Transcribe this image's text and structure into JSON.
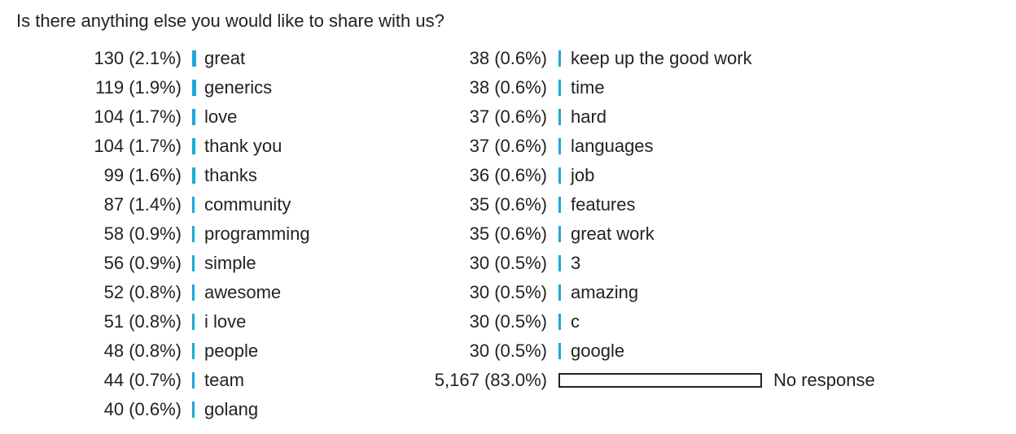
{
  "question": "Is there anything else you would like to share with us?",
  "chart_data": {
    "type": "bar",
    "title": "Is there anything else you would like to share with us?",
    "columns": [
      {
        "rows": [
          {
            "count": 130,
            "display": "130 (2.1%)",
            "percent": 2.1,
            "label": "great"
          },
          {
            "count": 119,
            "display": "119 (1.9%)",
            "percent": 1.9,
            "label": "generics"
          },
          {
            "count": 104,
            "display": "104 (1.7%)",
            "percent": 1.7,
            "label": "love"
          },
          {
            "count": 104,
            "display": "104 (1.7%)",
            "percent": 1.7,
            "label": "thank you"
          },
          {
            "count": 99,
            "display": "99 (1.6%)",
            "percent": 1.6,
            "label": "thanks"
          },
          {
            "count": 87,
            "display": "87 (1.4%)",
            "percent": 1.4,
            "label": "community"
          },
          {
            "count": 58,
            "display": "58 (0.9%)",
            "percent": 0.9,
            "label": "programming"
          },
          {
            "count": 56,
            "display": "56 (0.9%)",
            "percent": 0.9,
            "label": "simple"
          },
          {
            "count": 52,
            "display": "52 (0.8%)",
            "percent": 0.8,
            "label": "awesome"
          },
          {
            "count": 51,
            "display": "51 (0.8%)",
            "percent": 0.8,
            "label": "i love"
          },
          {
            "count": 48,
            "display": "48 (0.8%)",
            "percent": 0.8,
            "label": "people"
          },
          {
            "count": 44,
            "display": "44 (0.7%)",
            "percent": 0.7,
            "label": "team"
          },
          {
            "count": 40,
            "display": "40 (0.6%)",
            "percent": 0.6,
            "label": "golang"
          }
        ]
      },
      {
        "rows": [
          {
            "count": 38,
            "display": "38 (0.6%)",
            "percent": 0.6,
            "label": "keep up the good work"
          },
          {
            "count": 38,
            "display": "38 (0.6%)",
            "percent": 0.6,
            "label": "time"
          },
          {
            "count": 37,
            "display": "37 (0.6%)",
            "percent": 0.6,
            "label": "hard"
          },
          {
            "count": 37,
            "display": "37 (0.6%)",
            "percent": 0.6,
            "label": "languages"
          },
          {
            "count": 36,
            "display": "36 (0.6%)",
            "percent": 0.6,
            "label": "job"
          },
          {
            "count": 35,
            "display": "35 (0.6%)",
            "percent": 0.6,
            "label": "features"
          },
          {
            "count": 35,
            "display": "35 (0.6%)",
            "percent": 0.6,
            "label": "great work"
          },
          {
            "count": 30,
            "display": "30 (0.5%)",
            "percent": 0.5,
            "label": "3"
          },
          {
            "count": 30,
            "display": "30 (0.5%)",
            "percent": 0.5,
            "label": "amazing"
          },
          {
            "count": 30,
            "display": "30 (0.5%)",
            "percent": 0.5,
            "label": "c"
          },
          {
            "count": 30,
            "display": "30 (0.5%)",
            "percent": 0.5,
            "label": "google"
          },
          {
            "count": 5167,
            "display": "5,167 (83.0%)",
            "percent": 83.0,
            "label": "No response",
            "no_response": true
          }
        ]
      }
    ],
    "colors": {
      "bar": "#1ba9d6",
      "no_response_fill": "#ffffff",
      "no_response_border": "#222222",
      "text": "#222222"
    }
  }
}
